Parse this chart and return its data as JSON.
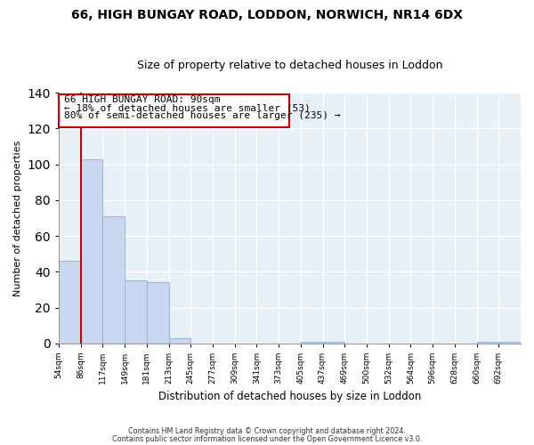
{
  "title": "66, HIGH BUNGAY ROAD, LODDON, NORWICH, NR14 6DX",
  "subtitle": "Size of property relative to detached houses in Loddon",
  "xlabel": "Distribution of detached houses by size in Loddon",
  "ylabel": "Number of detached properties",
  "bin_labels": [
    "54sqm",
    "86sqm",
    "117sqm",
    "149sqm",
    "181sqm",
    "213sqm",
    "245sqm",
    "277sqm",
    "309sqm",
    "341sqm",
    "373sqm",
    "405sqm",
    "437sqm",
    "469sqm",
    "500sqm",
    "532sqm",
    "564sqm",
    "596sqm",
    "628sqm",
    "660sqm",
    "692sqm"
  ],
  "bar_heights": [
    46,
    103,
    71,
    35,
    34,
    3,
    0,
    0,
    0,
    0,
    0,
    1,
    1,
    0,
    0,
    0,
    0,
    0,
    0,
    1,
    1
  ],
  "bar_color": "#c8d8f0",
  "bar_edgecolor": "#a0b8d8",
  "property_line_label": "66 HIGH BUNGAY ROAD: 90sqm",
  "pct_smaller": "18%",
  "n_smaller": 53,
  "pct_larger": "80%",
  "n_larger": 235,
  "annotation_box_color": "#ffffff",
  "annotation_box_edgecolor": "#cc0000",
  "vline_color": "#cc0000",
  "bg_color": "#e8f0f8",
  "ylim": [
    0,
    140
  ],
  "yticks": [
    0,
    20,
    40,
    60,
    80,
    100,
    120,
    140
  ],
  "footnote1": "Contains HM Land Registry data © Crown copyright and database right 2024.",
  "footnote2": "Contains public sector information licensed under the Open Government Licence v3.0."
}
